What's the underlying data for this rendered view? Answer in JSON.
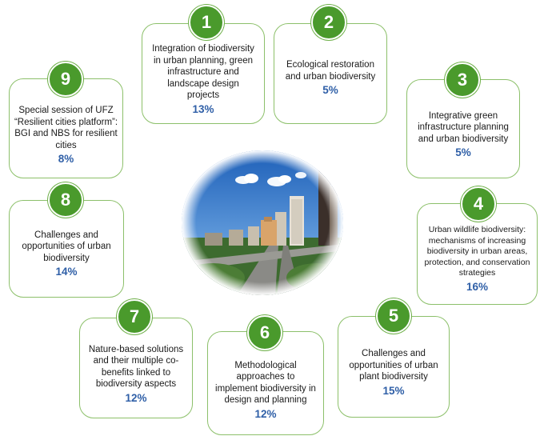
{
  "items": [
    {
      "num": "1",
      "text": "Integration of biodiversity in urban planning, green infrastructure and landscape design projects",
      "pct": "13%"
    },
    {
      "num": "2",
      "text": "Ecological restoration and urban biodiversity",
      "pct": "5%"
    },
    {
      "num": "3",
      "text": "Integrative green infrastructure planning and urban biodiversity",
      "pct": "5%"
    },
    {
      "num": "4",
      "text": "Urban wildlife biodiversity: mechanisms of increasing biodiversity in urban areas, protection, and conservation strategies",
      "pct": "16%"
    },
    {
      "num": "5",
      "text": "Challenges and opportunities of urban plant biodiversity",
      "pct": "15%"
    },
    {
      "num": "6",
      "text": "Methodological approaches to implement biodiversity in design and planning",
      "pct": "12%"
    },
    {
      "num": "7",
      "text": "Nature-based solutions and their multiple co-benefits linked to biodiversity aspects",
      "pct": "12%"
    },
    {
      "num": "8",
      "text": "Challenges and opportunities of urban biodiversity",
      "pct": "14%"
    },
    {
      "num": "9",
      "text": "Special session of UFZ “Resilient cities platform”: BGI and NBS for resilient cities",
      "pct": "8%"
    }
  ],
  "colors": {
    "accent": "#4a9a2c",
    "border": "#8cc06a",
    "percent": "#2f5fa7"
  }
}
